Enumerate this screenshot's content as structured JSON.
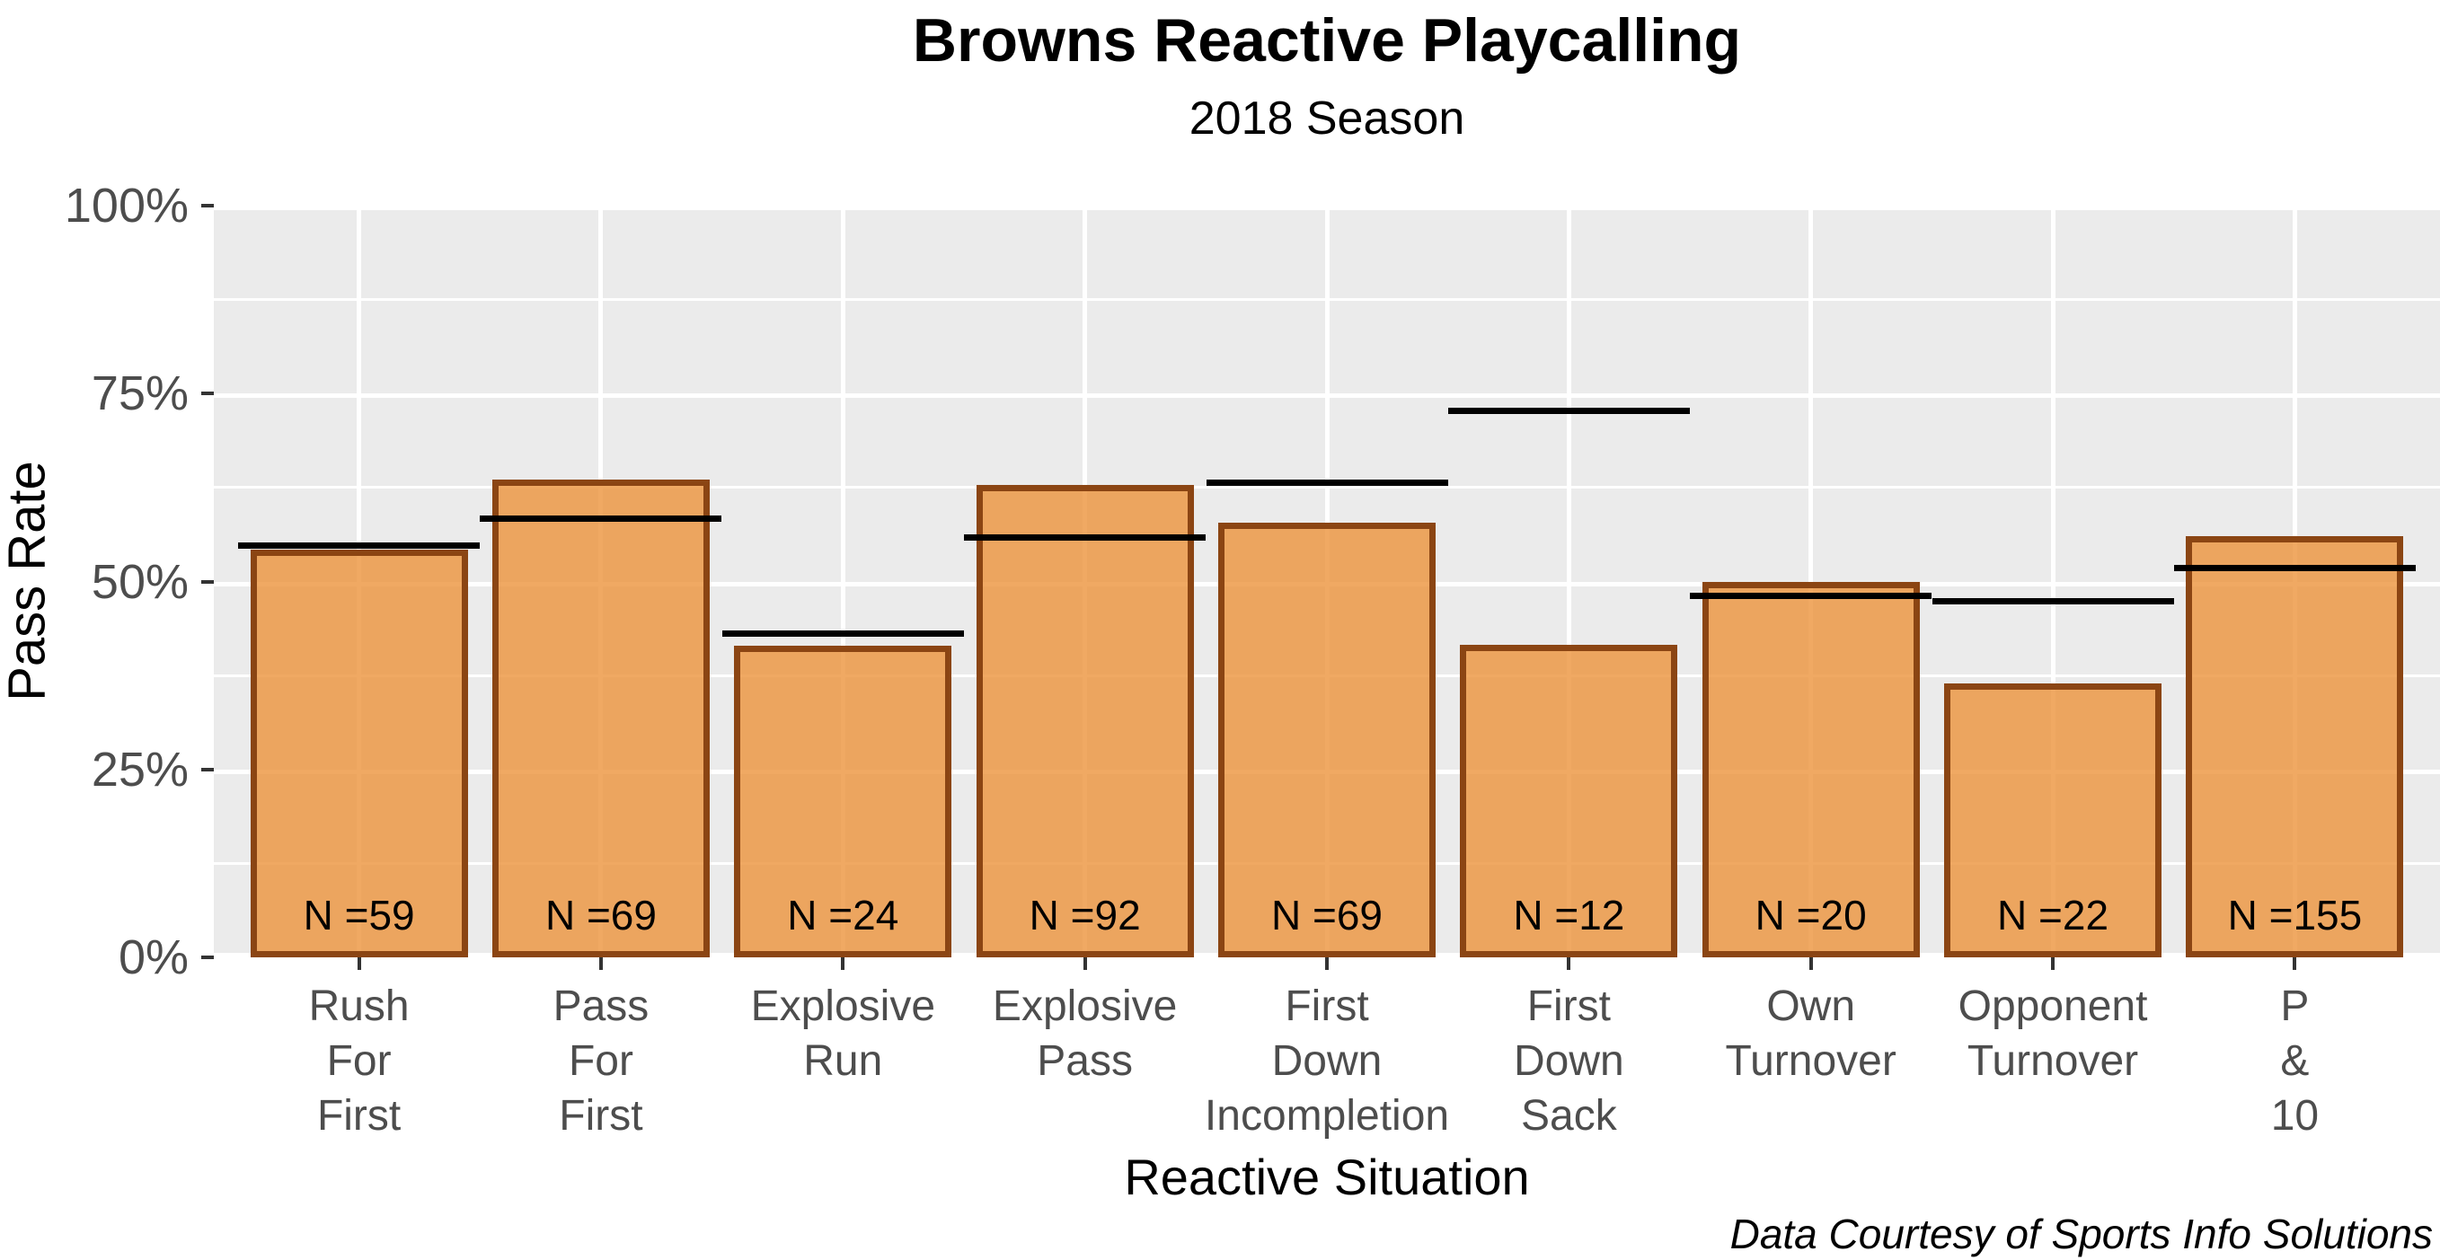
{
  "chart_data": {
    "type": "bar",
    "title": "Browns Reactive Playcalling",
    "subtitle": "2018 Season",
    "xlabel": "Reactive Situation",
    "ylabel": "Pass Rate",
    "caption": "Data Courtesy of Sports Info Solutions",
    "ylim": [
      0,
      100
    ],
    "yticks": [
      {
        "value": 0,
        "label": "0%"
      },
      {
        "value": 25,
        "label": "25%"
      },
      {
        "value": 50,
        "label": "50%"
      },
      {
        "value": 75,
        "label": "75%"
      },
      {
        "value": 100,
        "label": "100%"
      }
    ],
    "minor_gridlines": [
      12.5,
      37.5,
      62.5,
      87.5
    ],
    "grid": "white major and minor horizontal lines plus vertical category lines on gray panel",
    "legend_position": "none",
    "categories": [
      "Rush For First",
      "Pass For First",
      "Explosive Run",
      "Explosive Pass",
      "First Down Incompletion",
      "First Down Sack",
      "Own Turnover",
      "Opponent Turnover",
      "P & 10"
    ],
    "category_label_lines": [
      [
        "Rush",
        "For",
        "First"
      ],
      [
        "Pass",
        "For",
        "First"
      ],
      [
        "Explosive",
        "Run"
      ],
      [
        "Explosive",
        "Pass"
      ],
      [
        "First",
        "Down",
        "Incompletion"
      ],
      [
        "First",
        "Down",
        "Sack"
      ],
      [
        "Own",
        "Turnover"
      ],
      [
        "Opponent",
        "Turnover"
      ],
      [
        "P",
        "&",
        "10"
      ]
    ],
    "series": [
      {
        "name": "Browns pass rate (bars)",
        "values": [
          54.2,
          63.6,
          41.5,
          62.8,
          57.8,
          41.6,
          50.0,
          36.5,
          56.0
        ]
      },
      {
        "name": "Reference pass rate (black line segments)",
        "values": [
          54.8,
          58.4,
          43.1,
          55.8,
          63.2,
          72.7,
          48.1,
          47.4,
          51.8
        ]
      }
    ],
    "sample_sizes": [
      "N =59",
      "N =69",
      "N =24",
      "N =92",
      "N =69",
      "N =12",
      "N =20",
      "N =22",
      "N =155"
    ],
    "colors": {
      "bar_fill": "rgba(236,147,60,0.8)",
      "bar_fill_flat": "#ECA45F",
      "bar_border": "#8B4513",
      "reference_line": "#000000",
      "panel_background": "#EBEBEB",
      "gridline": "#FFFFFF",
      "tick_label": "#4D4D4D",
      "text": "#000000"
    }
  }
}
